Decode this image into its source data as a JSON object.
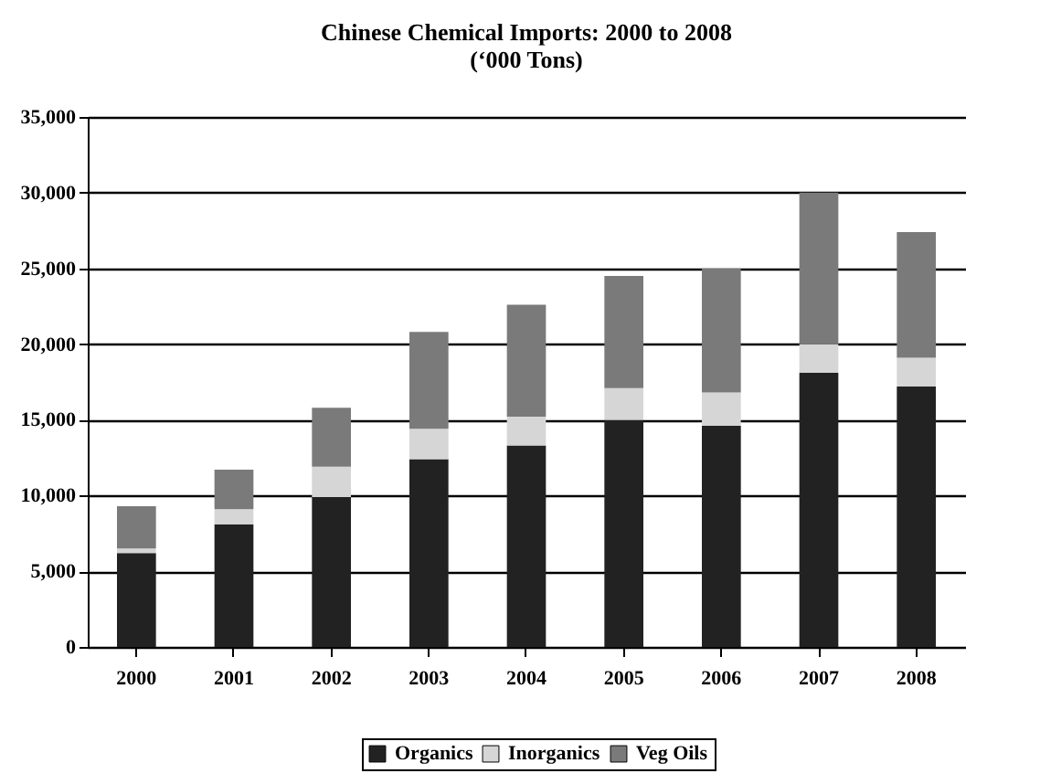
{
  "chart_data": {
    "type": "bar",
    "title": "Chinese Chemical Imports: 2000 to 2008",
    "subtitle": "(‘000 Tons)",
    "stacked": true,
    "categories": [
      "2000",
      "2001",
      "2002",
      "2003",
      "2004",
      "2005",
      "2006",
      "2007",
      "2008"
    ],
    "series": [
      {
        "name": "Organics",
        "color": "#222222",
        "values": [
          6200,
          8100,
          9900,
          12400,
          13300,
          15000,
          14600,
          18100,
          17200
        ]
      },
      {
        "name": "Inorganics",
        "color": "#d6d6d6",
        "values": [
          300,
          1000,
          2000,
          2000,
          1900,
          2100,
          2200,
          1900,
          1900
        ]
      },
      {
        "name": "Veg Oils",
        "color": "#7a7a7a",
        "values": [
          2800,
          2600,
          3900,
          6400,
          7400,
          7400,
          8200,
          10000,
          8300
        ]
      }
    ],
    "ylim": [
      0,
      35000
    ],
    "yticks": [
      0,
      {
        "value": 5000,
        "label": "5,000"
      },
      {
        "value": 10000,
        "label": "10,000"
      },
      {
        "value": 15000,
        "label": "15,000"
      },
      {
        "value": 20000,
        "label": "20,000"
      },
      {
        "value": 25000,
        "label": "25,000"
      },
      {
        "value": 30000,
        "label": "30,000"
      },
      {
        "value": 35000,
        "label": "35,000"
      }
    ],
    "grid": "y",
    "legend": "bottom"
  }
}
